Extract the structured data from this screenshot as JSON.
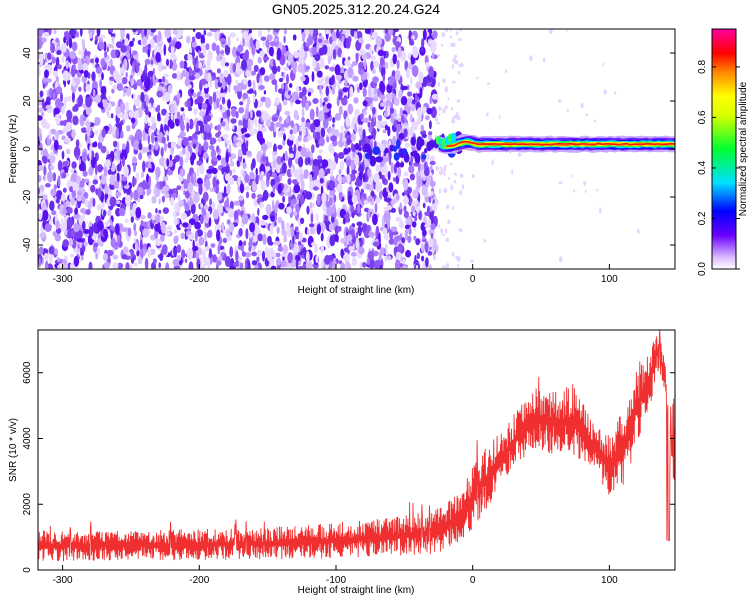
{
  "title": "GN05.2025.312.20.24.G24",
  "chart_data": [
    {
      "type": "heatmap",
      "xlabel": "Height of straight line (km)",
      "ylabel": "Frequency (Hz)",
      "xlim": [
        -318,
        148
      ],
      "ylim": [
        -50,
        50
      ],
      "x_ticks": [
        -300,
        -200,
        -100,
        0,
        100
      ],
      "y_ticks": [
        -40,
        -20,
        0,
        20,
        40
      ],
      "colorbar": {
        "label": "Normalized spectral amplitude",
        "range": [
          0,
          0.95
        ],
        "ticks": [
          0.0,
          0.2,
          0.4,
          0.6,
          0.8
        ]
      },
      "features": {
        "noise_region_x": [
          -318,
          -27
        ],
        "transition_x": [
          -80,
          -10
        ],
        "line_start_x": -25,
        "line_frequency_hz": 2,
        "line_amplitude": 0.9
      }
    },
    {
      "type": "line",
      "xlabel": "Height of straight line (km)",
      "ylabel": "SNR (10 * v/v)",
      "xlim": [
        -318,
        148
      ],
      "ylim": [
        0,
        7300
      ],
      "x_ticks": [
        -300,
        -200,
        -100,
        0,
        100
      ],
      "y_ticks": [
        0,
        2000,
        4000,
        6000
      ],
      "color": "#f03030",
      "envelope": {
        "x": [
          -318,
          -250,
          -200,
          -150,
          -100,
          -60,
          -30,
          -15,
          -5,
          5,
          20,
          35,
          45,
          60,
          75,
          90,
          100,
          110,
          120,
          130,
          135,
          140,
          145,
          148
        ],
        "low": [
          250,
          300,
          300,
          320,
          350,
          400,
          450,
          700,
          1000,
          1500,
          2500,
          3300,
          3700,
          3500,
          3400,
          3000,
          2200,
          2500,
          3800,
          5000,
          6000,
          5500,
          2500,
          2500
        ],
        "high": [
          1200,
          1200,
          1250,
          1300,
          1450,
          1600,
          1800,
          2200,
          2800,
          3500,
          4200,
          5000,
          5600,
          5400,
          5700,
          4400,
          4100,
          4900,
          6100,
          6800,
          7300,
          6700,
          4800,
          5600
        ]
      }
    }
  ]
}
